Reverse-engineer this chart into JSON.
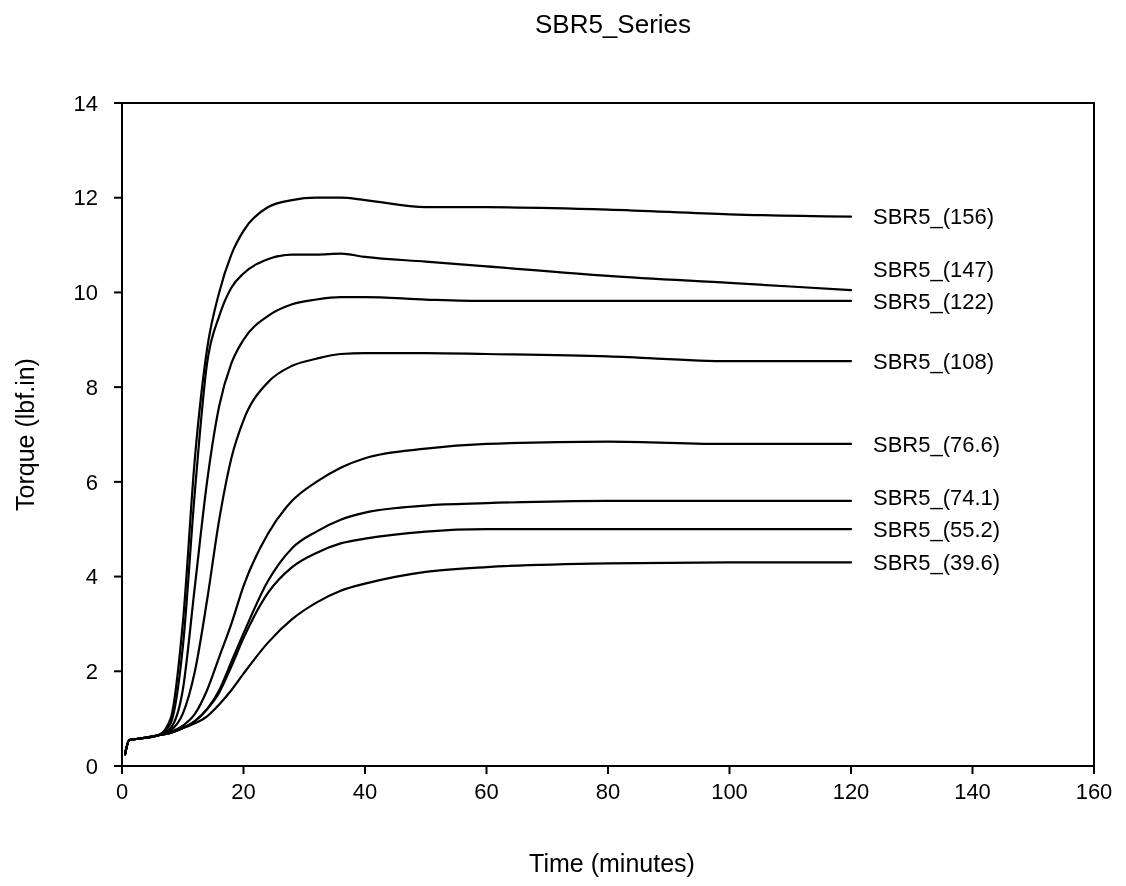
{
  "chart_data": {
    "type": "line",
    "title": "SBR5_Series",
    "xlabel": "Time (minutes)",
    "ylabel": "Torque (lbf.in)",
    "xlim": [
      0,
      160
    ],
    "ylim": [
      0,
      14
    ],
    "xticks": [
      0,
      20,
      40,
      60,
      80,
      100,
      120,
      140,
      160
    ],
    "yticks": [
      0,
      2,
      4,
      6,
      8,
      10,
      12,
      14
    ],
    "grid": false,
    "legend": false,
    "marker": "none",
    "line_style": "solid",
    "x": [
      0.5,
      1.2,
      3,
      6,
      8,
      10,
      12,
      14,
      16,
      18,
      20,
      24,
      28,
      32,
      36,
      40,
      50,
      60,
      80,
      100,
      120
    ],
    "series": [
      {
        "name": "SBR5_(156)",
        "color": "#000000",
        "values": [
          0.25,
          0.55,
          0.58,
          0.65,
          1.0,
          3.0,
          6.5,
          8.8,
          10.0,
          10.8,
          11.3,
          11.8,
          11.95,
          12.0,
          12.0,
          11.95,
          11.8,
          11.8,
          11.75,
          11.65,
          11.6
        ]
      },
      {
        "name": "SBR5_(147)",
        "color": "#000000",
        "values": [
          0.25,
          0.55,
          0.58,
          0.65,
          0.9,
          2.5,
          5.8,
          8.5,
          9.5,
          10.1,
          10.4,
          10.7,
          10.8,
          10.8,
          10.82,
          10.75,
          10.65,
          10.55,
          10.35,
          10.2,
          10.05
        ]
      },
      {
        "name": "SBR5_(122)",
        "color": "#000000",
        "values": [
          0.25,
          0.55,
          0.58,
          0.65,
          0.8,
          1.6,
          3.8,
          6.0,
          7.6,
          8.5,
          9.0,
          9.5,
          9.75,
          9.85,
          9.9,
          9.9,
          9.85,
          9.82,
          9.82,
          9.82,
          9.82
        ]
      },
      {
        "name": "SBR5_(108)",
        "color": "#000000",
        "values": [
          0.25,
          0.55,
          0.58,
          0.65,
          0.75,
          1.1,
          2.0,
          3.5,
          5.2,
          6.5,
          7.3,
          8.1,
          8.45,
          8.6,
          8.7,
          8.72,
          8.72,
          8.7,
          8.65,
          8.55,
          8.55
        ]
      },
      {
        "name": "SBR5_(76.6)",
        "color": "#000000",
        "values": [
          0.25,
          0.55,
          0.58,
          0.65,
          0.72,
          0.85,
          1.1,
          1.6,
          2.3,
          3.0,
          3.8,
          4.9,
          5.6,
          6.0,
          6.3,
          6.5,
          6.7,
          6.8,
          6.85,
          6.8,
          6.8
        ]
      },
      {
        "name": "SBR5_(74.1)",
        "color": "#000000",
        "values": [
          0.25,
          0.55,
          0.58,
          0.65,
          0.7,
          0.8,
          0.95,
          1.2,
          1.6,
          2.2,
          2.8,
          3.9,
          4.6,
          4.95,
          5.2,
          5.35,
          5.5,
          5.55,
          5.6,
          5.6,
          5.6
        ]
      },
      {
        "name": "SBR5_(55.2)",
        "color": "#000000",
        "values": [
          0.25,
          0.55,
          0.58,
          0.65,
          0.7,
          0.8,
          0.95,
          1.2,
          1.55,
          2.1,
          2.7,
          3.65,
          4.2,
          4.5,
          4.7,
          4.8,
          4.95,
          5.0,
          5.0,
          5.0,
          5.0
        ]
      },
      {
        "name": "SBR5_(39.6)",
        "color": "#000000",
        "values": [
          0.25,
          0.55,
          0.58,
          0.65,
          0.7,
          0.8,
          0.9,
          1.05,
          1.3,
          1.6,
          1.95,
          2.6,
          3.1,
          3.45,
          3.7,
          3.85,
          4.1,
          4.2,
          4.28,
          4.3,
          4.3
        ]
      }
    ]
  }
}
